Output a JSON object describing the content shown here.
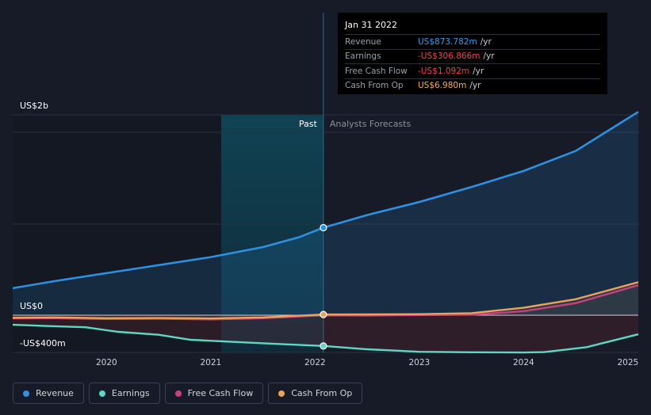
{
  "tooltip": {
    "date": "Jan 31 2022",
    "rows": [
      {
        "label": "Revenue",
        "value": "US$873.782m",
        "unit": "/yr",
        "color": "#3b9be8"
      },
      {
        "label": "Earnings",
        "value": "-US$306.866m",
        "unit": "/yr",
        "color": "#e8464a"
      },
      {
        "label": "Free Cash Flow",
        "value": "-US$1.092m",
        "unit": "/yr",
        "color": "#e8464a"
      },
      {
        "label": "Cash From Op",
        "value": "US$6.980m",
        "unit": "/yr",
        "color": "#f0b060"
      }
    ]
  },
  "legend": [
    {
      "label": "Revenue",
      "color": "#2e90e0"
    },
    {
      "label": "Earnings",
      "color": "#5ed8c2"
    },
    {
      "label": "Free Cash Flow",
      "color": "#c8407e"
    },
    {
      "label": "Cash From Op",
      "color": "#eaa35c"
    }
  ],
  "chart_data": {
    "type": "line",
    "y_tick_labels": [
      "US$2b",
      "US$0",
      "-US$400m"
    ],
    "y_ticks": [
      2000,
      0,
      -400
    ],
    "ylim": [
      -400,
      2000
    ],
    "xlim": [
      2019.1,
      2025.1
    ],
    "x_ticks": [
      2020,
      2021,
      2022,
      2023,
      2024,
      2025
    ],
    "x_tick_labels": [
      "2020",
      "2021",
      "2022",
      "2023",
      "2024",
      "2025"
    ],
    "past_label": "Past",
    "forecast_label": "Analysts Forecasts",
    "divider_x": 2022.08,
    "highlight_start_x": 2021.1,
    "series": [
      {
        "name": "Revenue",
        "color": "#2e90e0",
        "x": [
          2019.1,
          2019.5,
          2020.0,
          2020.5,
          2021.0,
          2021.5,
          2021.85,
          2022.08,
          2022.5,
          2023.0,
          2023.5,
          2024.0,
          2024.5,
          2025.1
        ],
        "y": [
          270,
          340,
          420,
          500,
          580,
          680,
          780,
          874,
          1000,
          1130,
          1280,
          1440,
          1640,
          2030
        ]
      },
      {
        "name": "Earnings",
        "color": "#5ed8c2",
        "x": [
          2019.1,
          2019.5,
          2019.8,
          2020.1,
          2020.5,
          2020.8,
          2021.2,
          2021.6,
          2022.08,
          2022.5,
          2023.0,
          2023.5,
          2024.0,
          2024.2,
          2024.6,
          2025.1
        ],
        "y": [
          -95,
          -110,
          -120,
          -165,
          -195,
          -245,
          -265,
          -285,
          -307,
          -340,
          -365,
          -370,
          -372,
          -368,
          -320,
          -190
        ]
      },
      {
        "name": "Free Cash Flow",
        "color": "#c8407e",
        "x": [
          2019.1,
          2019.5,
          2020.0,
          2020.5,
          2021.0,
          2021.5,
          2022.08,
          2022.5,
          2023.0,
          2023.5,
          2024.0,
          2024.5,
          2025.1
        ],
        "y": [
          -32,
          -30,
          -38,
          -35,
          -42,
          -30,
          -1,
          -3,
          2,
          5,
          40,
          120,
          300
        ]
      },
      {
        "name": "Cash From Op",
        "color": "#eaa35c",
        "x": [
          2019.1,
          2019.5,
          2020.0,
          2020.5,
          2021.0,
          2021.5,
          2022.08,
          2022.5,
          2023.0,
          2023.5,
          2024.0,
          2024.5,
          2025.1
        ],
        "y": [
          -25,
          -22,
          -30,
          -28,
          -32,
          -22,
          7,
          8,
          10,
          20,
          75,
          160,
          330
        ]
      }
    ]
  }
}
